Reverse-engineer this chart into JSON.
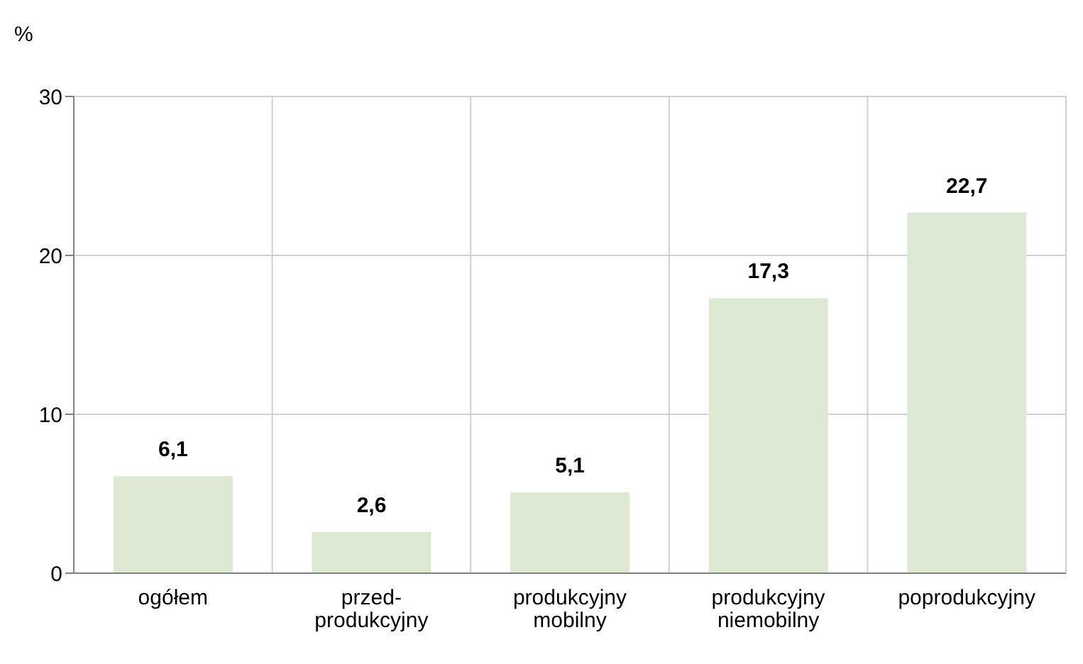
{
  "chart_data": {
    "type": "bar",
    "ylabel": "%",
    "categories": [
      "ogółem",
      "przed-produkcyjny",
      "produkcyjny mobilny",
      "produkcyjny niemobilny",
      "poprodukcyjny"
    ],
    "values": [
      6.1,
      2.6,
      5.1,
      17.3,
      22.7
    ],
    "value_labels": [
      "6,1",
      "2,6",
      "5,1",
      "17,3",
      "22,7"
    ],
    "color": "#dde9d3",
    "ylim": [
      0,
      30
    ],
    "yticks": [
      0,
      10,
      20,
      30
    ],
    "grid": true
  }
}
